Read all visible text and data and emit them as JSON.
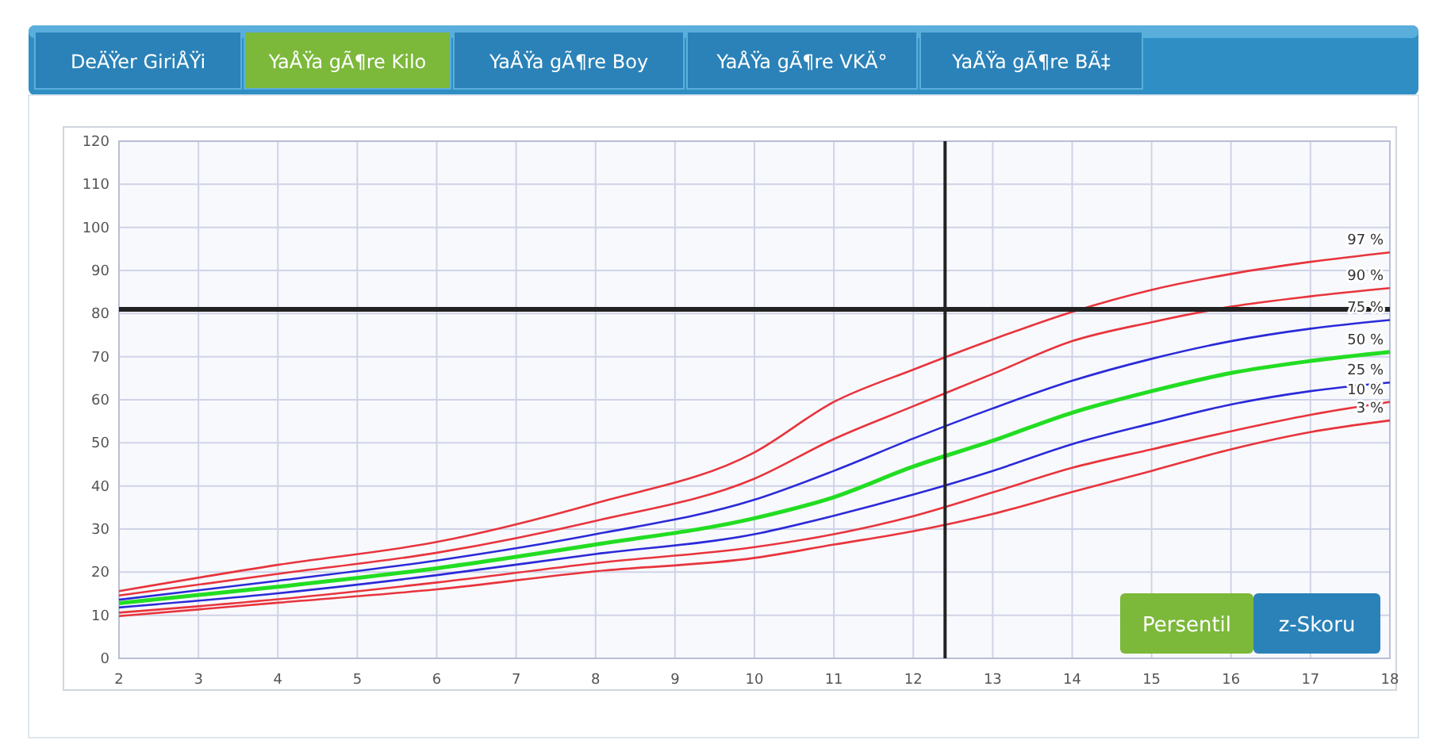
{
  "chart_data": {
    "type": "line",
    "x": [
      2,
      4,
      6,
      8,
      10,
      11,
      12,
      13,
      14,
      15,
      16,
      17,
      18
    ],
    "series": [
      {
        "name": "97 %",
        "color": "#e8343c",
        "values": [
          15.6,
          21.7,
          27,
          36,
          47.8,
          59.5,
          67,
          74,
          80.4,
          85.5,
          89.2,
          92,
          94.2
        ]
      },
      {
        "name": "90 %",
        "color": "#e8343c",
        "values": [
          14.6,
          19.6,
          24.5,
          31.9,
          41.7,
          50.9,
          58.5,
          66,
          73.6,
          78,
          81.6,
          84,
          85.9
        ]
      },
      {
        "name": "75 %",
        "color": "#2a2ad8",
        "values": [
          13.6,
          18,
          22.7,
          28.8,
          36.8,
          43.5,
          51,
          58,
          64.4,
          69.5,
          73.6,
          76.5,
          78.5
        ]
      },
      {
        "name": "50 %",
        "color": "#22dd22",
        "values": [
          12.8,
          16.6,
          20.9,
          26.4,
          32.5,
          37.4,
          44.5,
          50.5,
          57,
          62,
          66.2,
          69,
          71.1
        ]
      },
      {
        "name": "25 %",
        "color": "#2a2ad8",
        "values": [
          11.8,
          15.1,
          19.3,
          24.2,
          28.8,
          33.1,
          38,
          43.5,
          49.7,
          54.5,
          58.9,
          62,
          64
        ]
      },
      {
        "name": "10 %",
        "color": "#e8343c",
        "values": [
          10.6,
          13.7,
          17.6,
          22.1,
          25.8,
          28.8,
          33,
          38.5,
          44.2,
          48.5,
          52.7,
          56.5,
          59.5
        ]
      },
      {
        "name": "3 %",
        "color": "#e8343c",
        "values": [
          9.8,
          12.9,
          16,
          20.2,
          23.3,
          26.4,
          29.5,
          33.5,
          38.6,
          43.5,
          48.5,
          52.5,
          55.2
        ]
      }
    ],
    "xlim": [
      2,
      18
    ],
    "xticks": [
      2,
      3,
      4,
      5,
      6,
      7,
      8,
      9,
      10,
      11,
      12,
      13,
      14,
      15,
      16,
      17,
      18
    ],
    "ylim": [
      0,
      120
    ],
    "yticks": [
      0,
      10,
      20,
      30,
      40,
      50,
      60,
      70,
      80,
      90,
      100,
      110,
      120
    ],
    "grid": true,
    "ref_lines": [
      {
        "axis": "y",
        "value": 81,
        "color": "#222222"
      },
      {
        "axis": "x",
        "value": 12.4,
        "color": "#222222"
      }
    ],
    "annotations": [
      "DeÄŸer GiriÅŸi",
      "YaÅŸa gÃ¶re Kilo",
      "YaÅŸa gÃ¶re Boy",
      "YaÅŸa gÃ¶re VKÄ°",
      "YaÅŸa gÃ¶re BÃ‡",
      "Persentil",
      "z-Skoru"
    ]
  }
}
